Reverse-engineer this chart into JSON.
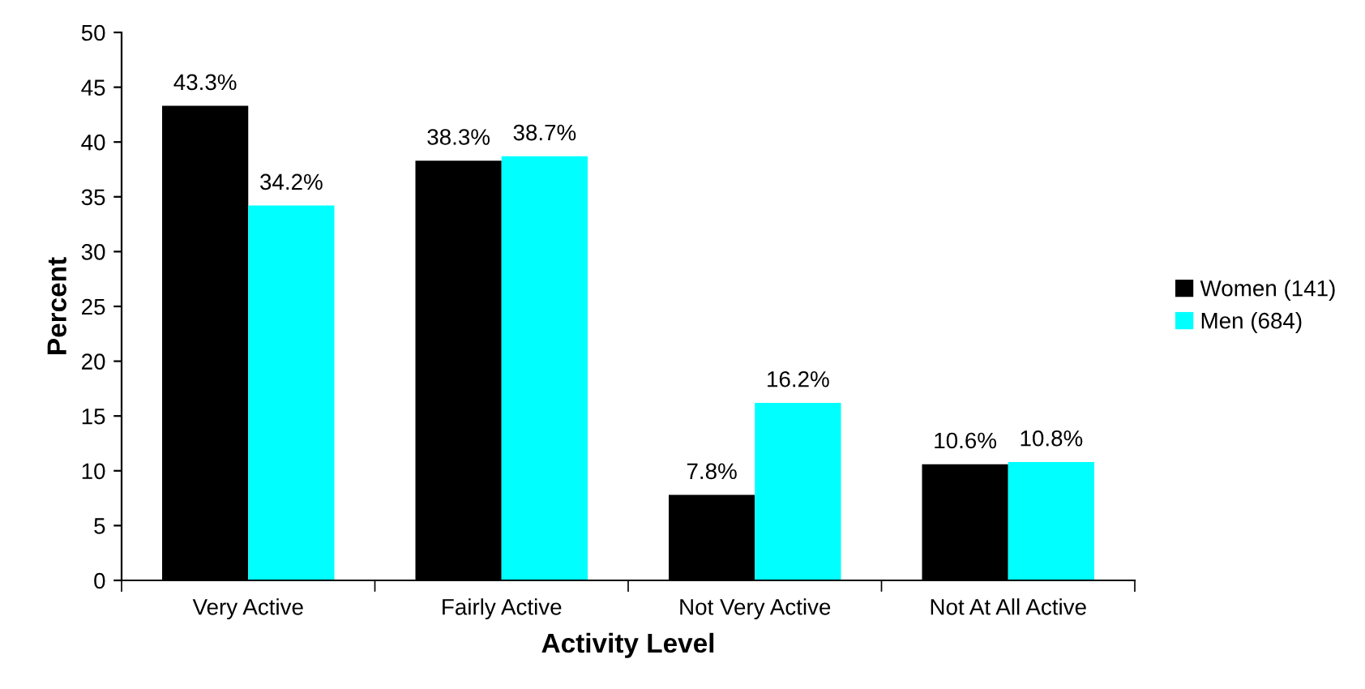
{
  "chart_data": {
    "type": "bar",
    "xlabel": "Activity Level",
    "ylabel": "Percent",
    "categories": [
      "Very Active",
      "Fairly Active",
      "Not Very Active",
      "Not At All Active"
    ],
    "series": [
      {
        "name": "Women (141)",
        "color": "#000000",
        "values": [
          43.3,
          38.3,
          7.8,
          10.6
        ],
        "value_labels": [
          "43.3%",
          "38.3%",
          "7.8%",
          "10.6%"
        ]
      },
      {
        "name": "Men (684)",
        "color": "#00ffff",
        "values": [
          34.2,
          38.7,
          16.2,
          10.8
        ],
        "value_labels": [
          "34.2%",
          "38.7%",
          "16.2%",
          "10.8%"
        ]
      }
    ],
    "ylim": [
      0,
      50
    ],
    "yticks": [
      0,
      5,
      10,
      15,
      20,
      25,
      30,
      35,
      40,
      45,
      50
    ],
    "grid": false,
    "legend": "right"
  }
}
